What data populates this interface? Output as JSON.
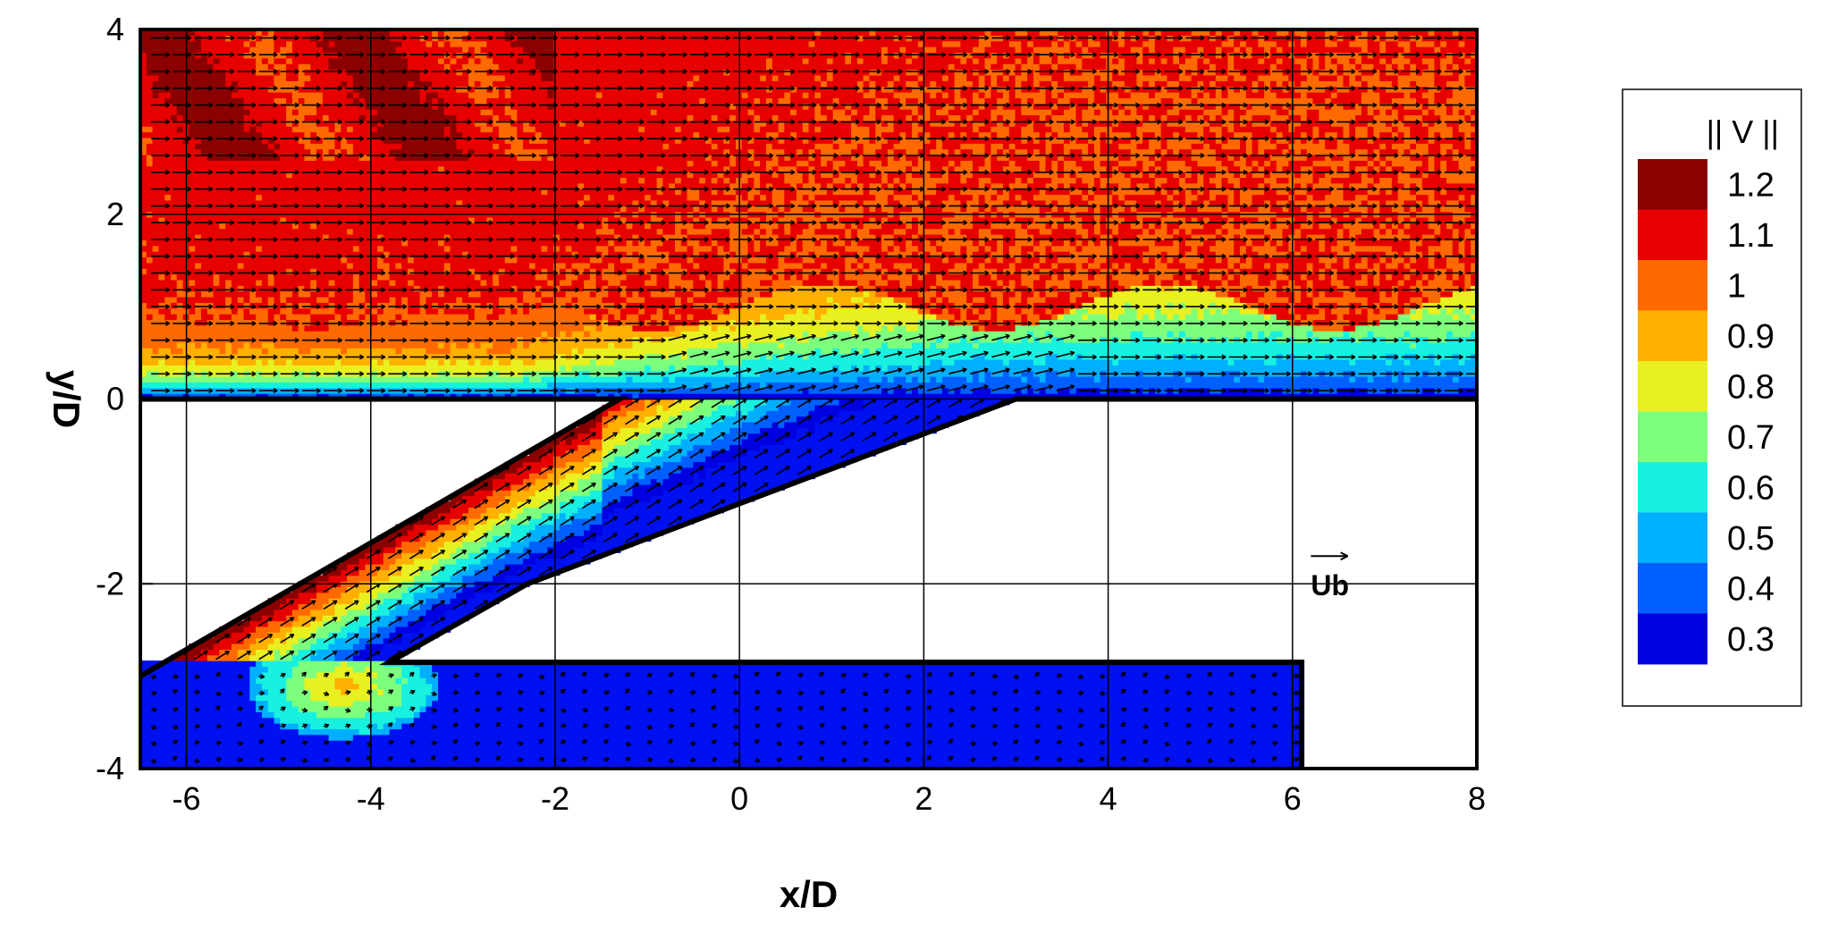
{
  "chart_data": {
    "type": "heatmap",
    "xlabel": "x/D",
    "ylabel": "y/D",
    "xlim": [
      -6.5,
      8
    ],
    "ylim": [
      -4,
      4
    ],
    "x_ticks": [
      -6,
      -4,
      -2,
      0,
      2,
      4,
      6,
      8
    ],
    "y_ticks": [
      -4,
      -2,
      0,
      2,
      4
    ],
    "grid": true,
    "colorbar": {
      "title": "|| V ||",
      "placement": "right",
      "levels": [
        {
          "label": "1.2",
          "color": "#8b0000"
        },
        {
          "label": "1.1",
          "color": "#e60000"
        },
        {
          "label": "1",
          "color": "#ff6a00"
        },
        {
          "label": "0.9",
          "color": "#ffb000"
        },
        {
          "label": "0.8",
          "color": "#e8f020"
        },
        {
          "label": "0.7",
          "color": "#7dff7d"
        },
        {
          "label": "0.6",
          "color": "#18f0e0"
        },
        {
          "label": "0.5",
          "color": "#00b0ff"
        },
        {
          "label": "0.4",
          "color": "#0060ff"
        },
        {
          "label": "0.3",
          "color": "#0000e0"
        }
      ],
      "below_min_color": "#0010f0"
    },
    "geometry": {
      "wall_y": 0,
      "hole_upstream_exit_x": -1.3,
      "hole_downstream_exit_x": 3.0,
      "hole_upstream_inlet": [
        -6.5,
        -3.0
      ],
      "hole_downstream_inlet": [
        -3.8,
        -2.85
      ],
      "plenum_top_y": -2.85,
      "plenum_right_x": 6.1
    },
    "reference_vector": {
      "label": "Ub",
      "x": 6.2,
      "y": -1.7,
      "length": 0.4
    }
  }
}
